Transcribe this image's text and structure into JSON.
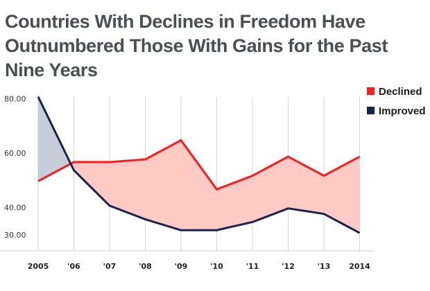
{
  "chart_data": {
    "type": "line",
    "title": "Countries With Declines in Freedom Have Outnumbered Those With Gains for the Past Nine Years",
    "categories": [
      "2005",
      "'06",
      "'07",
      "'08",
      "'09",
      "'10",
      "'11",
      "'12",
      "'13",
      "2014"
    ],
    "y_ticks": [
      "80.00",
      "60.00",
      "40.00",
      "30.00"
    ],
    "ylim": [
      27,
      82
    ],
    "grid": "vertical",
    "legend_position": "top-right",
    "series": [
      {
        "name": "Declined",
        "color": "#ff1a1a",
        "values": [
          52,
          59,
          59,
          60,
          67,
          49,
          54,
          61,
          54,
          61
        ]
      },
      {
        "name": "Improved",
        "color": "#16244f",
        "values": [
          83,
          56,
          43,
          38,
          34,
          34,
          37,
          42,
          40,
          33
        ]
      }
    ],
    "fill_colors": {
      "declined_gap": "#ffc9c4",
      "improved_gap": "#c5cdd9"
    }
  }
}
